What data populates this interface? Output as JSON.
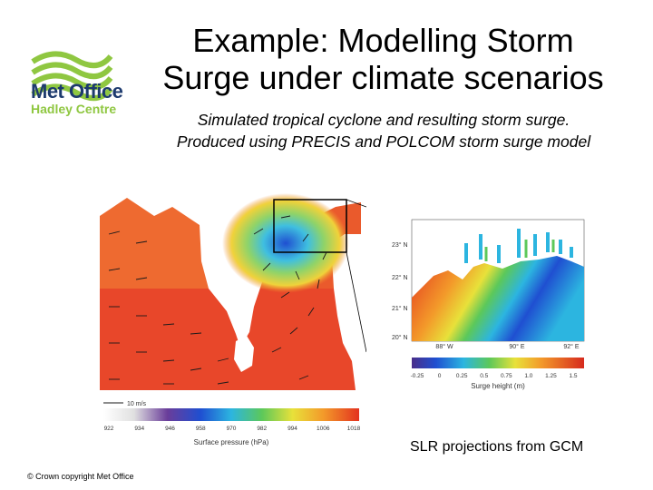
{
  "header": {
    "title_line1": "Example: Modelling Storm",
    "title_line2": "Surge under climate scenarios",
    "subtitle_line1": "Simulated tropical cyclone and resulting storm surge.",
    "subtitle_line2": "Produced using PRECIS and POLCOM storm surge model"
  },
  "logo": {
    "name": "Met Office",
    "sub": "Hadley Centre",
    "icon": "met-office-wave-icon",
    "colors": {
      "green": "#8fc741",
      "navy": "#1d3a6e"
    }
  },
  "storm_map": {
    "wind_scale_label": "10 m/s",
    "pressure_ticks": [
      "922",
      "934",
      "946",
      "958",
      "970",
      "982",
      "994",
      "1006",
      "1018"
    ],
    "pressure_label": "Surface pressure (hPa)"
  },
  "surge_map": {
    "lat_labels": [
      "23° N",
      "22° N",
      "21° N",
      "20° N"
    ],
    "lon_labels": [
      "88° W",
      "90° E",
      "92° E"
    ],
    "surge_ticks": [
      "-0.25",
      "0",
      "0.25",
      "0.5",
      "0.75",
      "1.0",
      "1.25",
      "1.5"
    ],
    "surge_label": "Surge height (m)"
  },
  "caption": "SLR projections from GCM",
  "copyright": "© Crown copyright Met Office"
}
